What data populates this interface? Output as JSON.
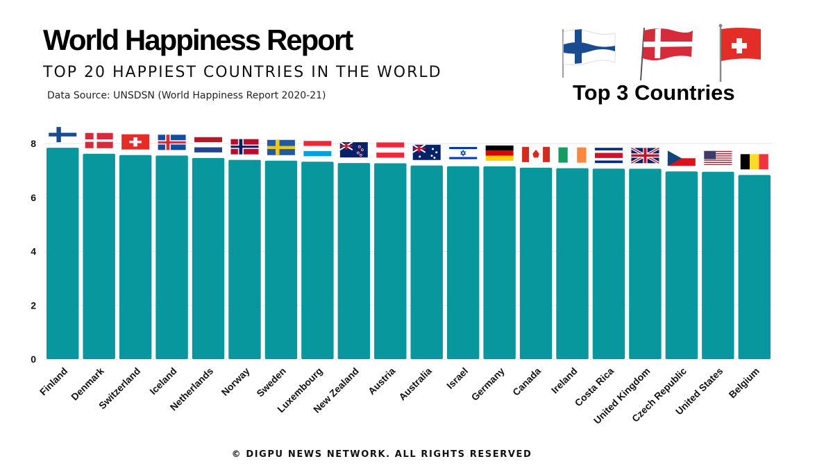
{
  "header": {
    "title": "World Happiness Report",
    "subtitle": "TOP 20 HAPPIEST COUNTRIES IN THE WORLD",
    "source": "Data Source: UNSDSN  (World Happiness Report 2020-21)"
  },
  "top3": {
    "title": "Top 3 Countries",
    "flags": [
      "finland-flag-icon",
      "denmark-flag-icon",
      "switzerland-flag-icon"
    ]
  },
  "footer": {
    "text": "© DIGPU NEWS NETWORK. ALL RIGHTS RESERVED"
  },
  "colors": {
    "bar": "#07979c",
    "grid": "#e6e6e6",
    "text": "#111111"
  },
  "chart_data": {
    "type": "bar",
    "title": "TOP 20 HAPPIEST COUNTRIES IN THE WORLD",
    "xlabel": "",
    "ylabel": "",
    "ylim": [
      0,
      8
    ],
    "yticks": [
      0,
      2,
      4,
      6,
      8
    ],
    "grid": true,
    "categories": [
      "Finland",
      "Denmark",
      "Switzerland",
      "Iceland",
      "Netherlands",
      "Norway",
      "Sweden",
      "Luxembourg",
      "New Zealand",
      "Austria",
      "Australia",
      "Israel",
      "Germany",
      "Canada",
      "Ireland",
      "Costa Rica",
      "United Kingdom",
      "Czech Republic",
      "United States",
      "Belgium"
    ],
    "values": [
      7.842,
      7.62,
      7.571,
      7.554,
      7.464,
      7.392,
      7.363,
      7.324,
      7.277,
      7.268,
      7.183,
      7.157,
      7.155,
      7.103,
      7.085,
      7.069,
      7.064,
      6.965,
      6.951,
      6.834
    ],
    "flag_icons": [
      "finland-flag-icon",
      "denmark-flag-icon",
      "switzerland-flag-icon",
      "iceland-flag-icon",
      "netherlands-flag-icon",
      "norway-flag-icon",
      "sweden-flag-icon",
      "luxembourg-flag-icon",
      "new-zealand-flag-icon",
      "austria-flag-icon",
      "australia-flag-icon",
      "israel-flag-icon",
      "germany-flag-icon",
      "canada-flag-icon",
      "ireland-flag-icon",
      "costa-rica-flag-icon",
      "united-kingdom-flag-icon",
      "czech-republic-flag-icon",
      "united-states-flag-icon",
      "belgium-flag-icon"
    ]
  }
}
